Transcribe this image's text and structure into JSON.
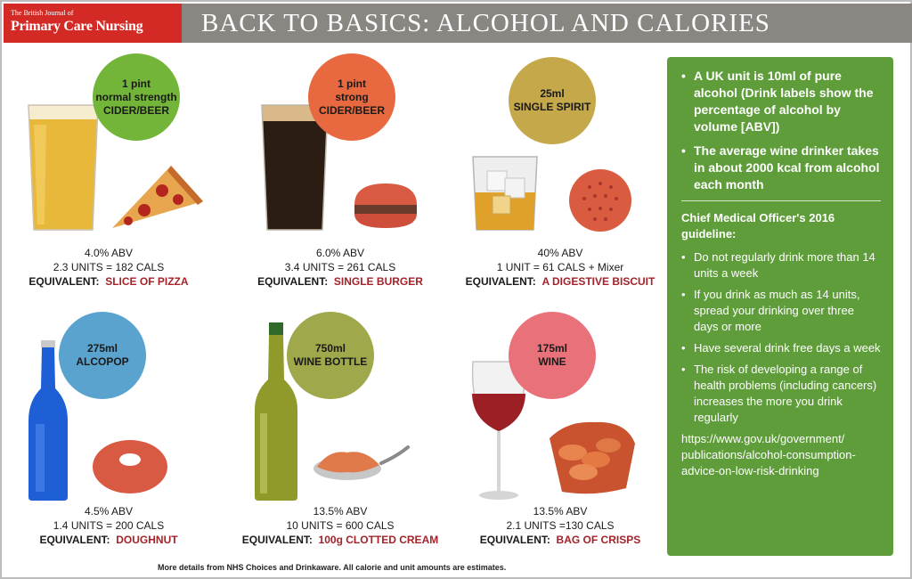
{
  "header": {
    "logo_small": "The British Journal of",
    "logo_big": "Primary Care Nursing",
    "title": "BACK TO BASICS: ALCOHOL AND CALORIES"
  },
  "colors": {
    "header_bg": "#8a8682",
    "logo_bg": "#d42a25",
    "panel_bg": "#5e9d3a",
    "equivalent_text": "#a3232a"
  },
  "drinks": [
    {
      "badge": [
        "1 pint",
        "normal strength",
        "CIDER/BEER"
      ],
      "badge_color": "#73b538",
      "abv": "4.0% ABV",
      "units": "2.3 UNITS  = 182 CALS",
      "equivalent_label": "EQUIVALENT:",
      "equivalent": "SLICE OF PIZZA",
      "drink_icon": "pint-glass-lager",
      "food_icon": "pizza-slice"
    },
    {
      "badge": [
        "1 pint",
        "strong",
        "CIDER/BEER"
      ],
      "badge_color": "#e8683f",
      "abv": "6.0% ABV",
      "units": "3.4 UNITS = 261 CALS",
      "equivalent_label": "EQUIVALENT:",
      "equivalent": "SINGLE BURGER",
      "drink_icon": "pint-glass-stout",
      "food_icon": "burger"
    },
    {
      "badge": [
        "25ml",
        "SINGLE SPIRIT"
      ],
      "badge_color": "#c5a84a",
      "abv": "40% ABV",
      "units": "1 UNIT = 61 CALS + Mixer",
      "equivalent_label": "EQUIVALENT:",
      "equivalent": "A DIGESTIVE BISCUIT",
      "drink_icon": "whisky-glass",
      "food_icon": "biscuit"
    },
    {
      "badge": [
        "275ml",
        "ALCOPOP"
      ],
      "badge_color": "#5aa3cf",
      "abv": "4.5% ABV",
      "units": "1.4 UNITS = 200 CALS",
      "equivalent_label": "EQUIVALENT:",
      "equivalent": "DOUGHNUT",
      "drink_icon": "alcopop-bottle",
      "food_icon": "doughnut"
    },
    {
      "badge": [
        "750ml",
        "WINE BOTTLE"
      ],
      "badge_color": "#9fa84a",
      "abv": "13.5% ABV",
      "units": "10 UNITS = 600 CALS",
      "equivalent_label": "EQUIVALENT:",
      "equivalent": "100g CLOTTED CREAM",
      "drink_icon": "wine-bottle",
      "food_icon": "spoon-of-cream"
    },
    {
      "badge": [
        "175ml",
        "WINE"
      ],
      "badge_color": "#e9727a",
      "abv": "13.5% ABV",
      "units": "2.1 UNITS =130 CALS",
      "equivalent_label": "EQUIVALENT:",
      "equivalent": "BAG OF CRISPS",
      "drink_icon": "wine-glass",
      "food_icon": "crisps-bag"
    }
  ],
  "panel": {
    "facts": [
      "A UK unit is 10ml of pure alcohol (Drink labels show the percentage of alcohol by volume [ABV])",
      "The average wine drinker takes in about 2000 kcal from alcohol each month"
    ],
    "guideline_title": "Chief Medical Officer's 2016 guideline:",
    "guidelines": [
      "Do not regularly drink more than 14 units a week",
      "If you drink as much as 14 units, spread your drinking over three days or more",
      "Have several drink free days a week",
      "The risk of developing a range of health problems (including cancers) increases the more you drink regularly"
    ],
    "link": "https://www.gov.uk/government/ publications/alcohol-consumption- advice-on-low-risk-drinking"
  },
  "footnote": "More details from NHS Choices and Drinkaware.  All calorie and unit amounts are estimates."
}
